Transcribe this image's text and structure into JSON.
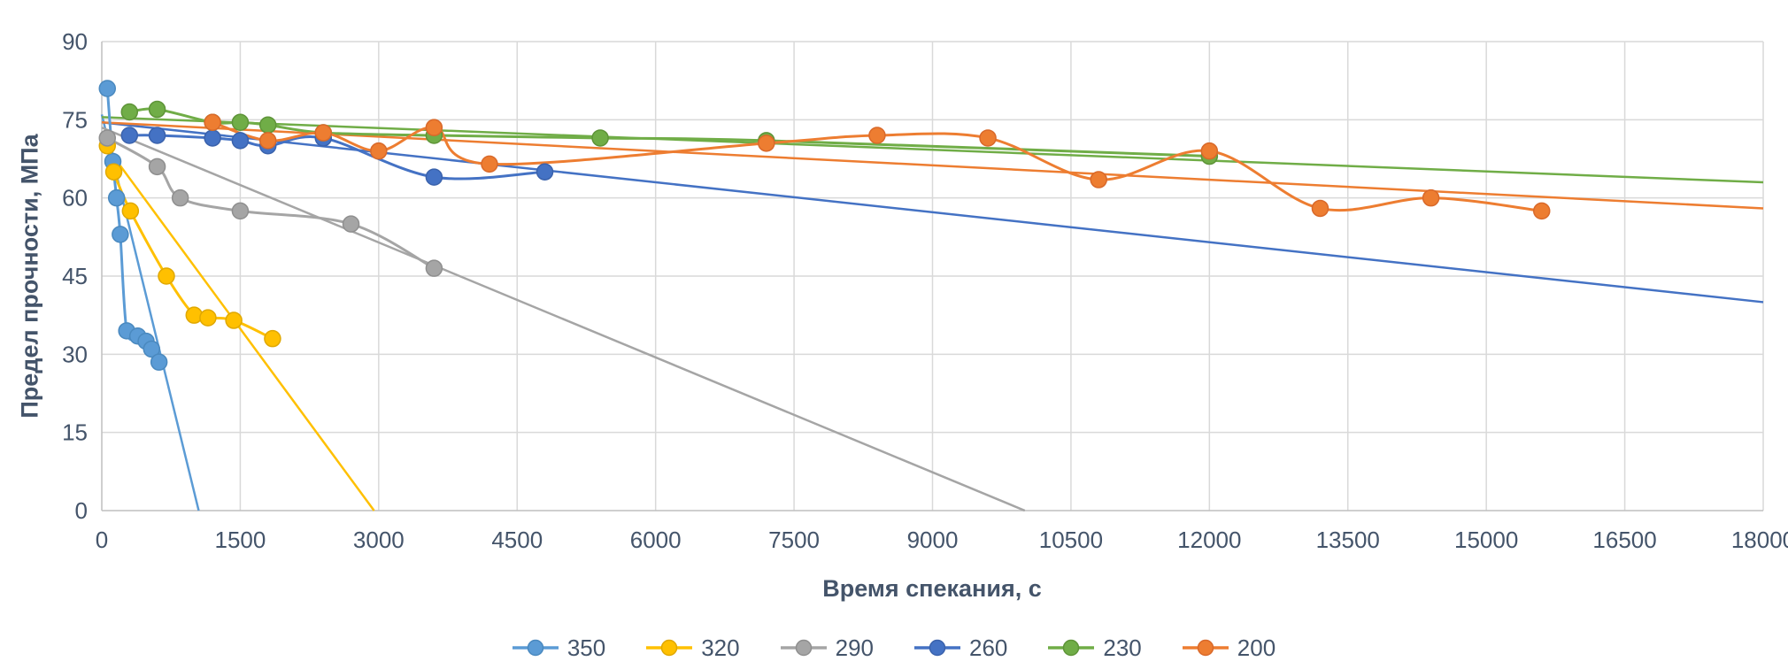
{
  "chart_data": {
    "type": "scatter",
    "title": "",
    "xlabel": "Время спекания, с",
    "ylabel": "Предел прочности, МПа",
    "xlim": [
      0,
      18000
    ],
    "ylim": [
      0,
      90
    ],
    "xticks": [
      0,
      1500,
      3000,
      4500,
      6000,
      7500,
      9000,
      10500,
      12000,
      13500,
      15000,
      16500,
      18000
    ],
    "yticks": [
      0,
      15,
      30,
      45,
      60,
      75,
      90
    ],
    "grid": true,
    "legend_position": "bottom",
    "style": {
      "text_color": "#44546A",
      "grid_color": "#D9D9D9",
      "axis_color": "#BFBFBF",
      "plot_background": "#FFFFFF",
      "background": "#FFFFFF"
    },
    "series": [
      {
        "name": "350",
        "color": "#5B9BD5",
        "marker_stroke": "#4A89BF",
        "points": [
          [
            60,
            81
          ],
          [
            120,
            67
          ],
          [
            160,
            60
          ],
          [
            200,
            53
          ],
          [
            270,
            34.5
          ],
          [
            390,
            33.5
          ],
          [
            480,
            32.5
          ],
          [
            540,
            31
          ],
          [
            620,
            28.5
          ]
        ],
        "trendline": [
          [
            0,
            76
          ],
          [
            1050,
            0
          ]
        ]
      },
      {
        "name": "320",
        "color": "#FFC000",
        "marker_stroke": "#E0A800",
        "points": [
          [
            60,
            70
          ],
          [
            130,
            65
          ],
          [
            310,
            57.5
          ],
          [
            700,
            45
          ],
          [
            1000,
            37.5
          ],
          [
            1150,
            37
          ],
          [
            1430,
            36.5
          ],
          [
            1850,
            33
          ]
        ],
        "trendline": [
          [
            0,
            71
          ],
          [
            2950,
            0
          ]
        ]
      },
      {
        "name": "290",
        "color": "#A5A5A5",
        "marker_stroke": "#8F8F8F",
        "points": [
          [
            60,
            71.5
          ],
          [
            600,
            66
          ],
          [
            850,
            60
          ],
          [
            1500,
            57.5
          ],
          [
            2700,
            55
          ],
          [
            3600,
            46.5
          ]
        ],
        "trendline": [
          [
            0,
            73.5
          ],
          [
            10000,
            0
          ]
        ]
      },
      {
        "name": "260",
        "color": "#4472C4",
        "marker_stroke": "#3A62AC",
        "points": [
          [
            300,
            72
          ],
          [
            600,
            72
          ],
          [
            1200,
            71.5
          ],
          [
            1500,
            71
          ],
          [
            1800,
            70
          ],
          [
            2400,
            71.5
          ],
          [
            3600,
            64
          ],
          [
            4800,
            65
          ]
        ],
        "trendline": [
          [
            0,
            74.5
          ],
          [
            18000,
            40
          ]
        ]
      },
      {
        "name": "230",
        "color": "#70AD47",
        "marker_stroke": "#5E9438",
        "points": [
          [
            300,
            76.5
          ],
          [
            600,
            77
          ],
          [
            1200,
            74.5
          ],
          [
            1500,
            74.5
          ],
          [
            1800,
            74
          ],
          [
            2400,
            72.5
          ],
          [
            3600,
            72
          ],
          [
            5400,
            71.5
          ],
          [
            7200,
            71
          ],
          [
            12000,
            68
          ]
        ],
        "trendline": [
          [
            0,
            75.5
          ],
          [
            18000,
            63
          ]
        ]
      },
      {
        "name": "200",
        "color": "#ED7D31",
        "marker_stroke": "#D9692A",
        "points": [
          [
            1200,
            74.5
          ],
          [
            1800,
            71
          ],
          [
            2400,
            72.5
          ],
          [
            3000,
            69
          ],
          [
            3600,
            73.5
          ],
          [
            4200,
            66.5
          ],
          [
            7200,
            70.5
          ],
          [
            8400,
            72
          ],
          [
            9600,
            71.5
          ],
          [
            10800,
            63.5
          ],
          [
            12000,
            69
          ],
          [
            13200,
            58
          ],
          [
            14400,
            60
          ],
          [
            15600,
            57.5
          ]
        ],
        "trendline": [
          [
            0,
            74.5
          ],
          [
            18000,
            58
          ]
        ]
      }
    ]
  }
}
